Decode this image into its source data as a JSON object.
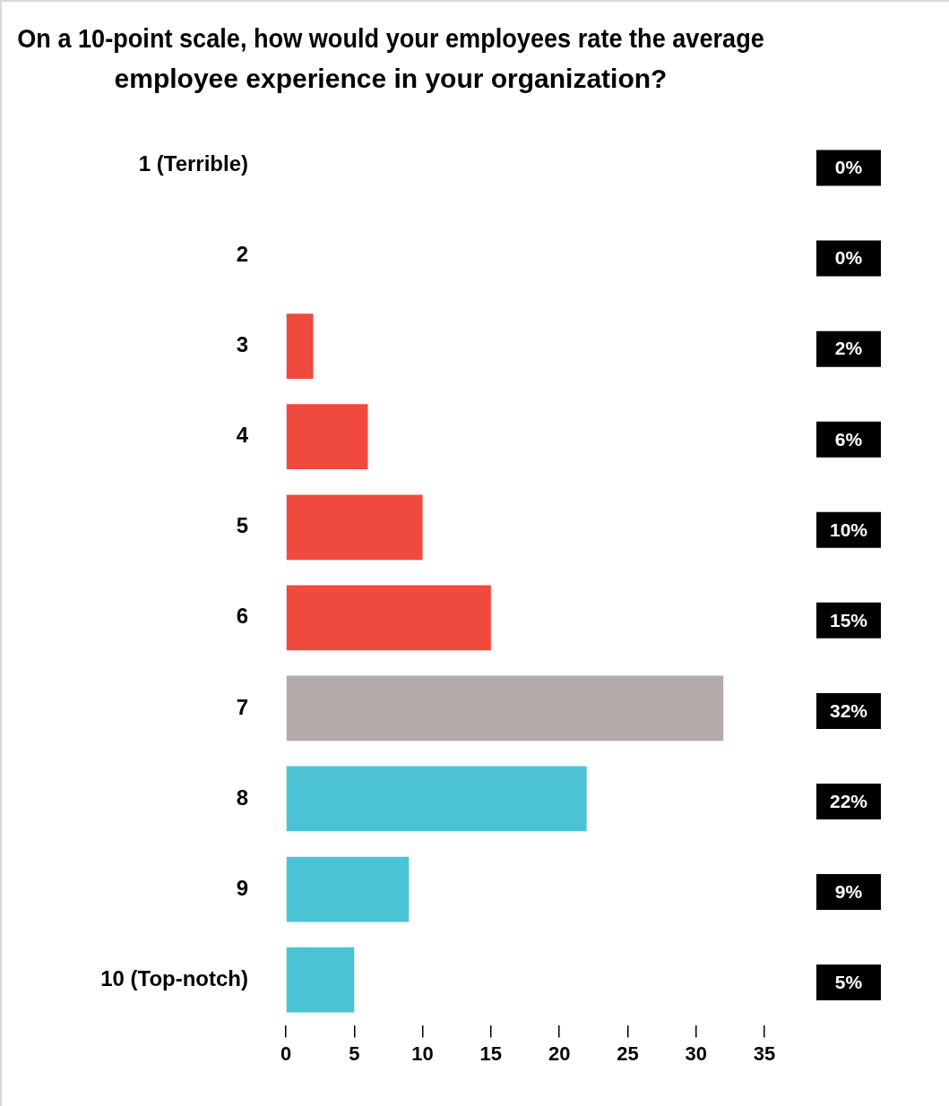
{
  "chart_data": {
    "type": "bar",
    "orientation": "horizontal",
    "title": "On a 10-point scale, how would your employees rate the average employee experience in your organization?",
    "categories": [
      "1 (Terrible)",
      "2",
      "3",
      "4",
      "5",
      "6",
      "7",
      "8",
      "9",
      "10 (Top-notch)"
    ],
    "values": [
      0,
      0,
      2,
      6,
      10,
      15,
      32,
      22,
      9,
      5
    ],
    "colors": [
      "#f04a3e",
      "#f04a3e",
      "#f04a3e",
      "#f04a3e",
      "#f04a3e",
      "#f04a3e",
      "#b3aaa9",
      "#4cc3d4",
      "#4cc3d4",
      "#4cc3d4"
    ],
    "value_labels": [
      "0%",
      "0%",
      "2%",
      "6%",
      "10%",
      "15%",
      "32%",
      "22%",
      "9%",
      "5%"
    ],
    "xlim": [
      0,
      35
    ],
    "xticks": [
      0,
      5,
      10,
      15,
      20,
      25,
      30,
      35
    ],
    "grid": false,
    "legend": false
  }
}
